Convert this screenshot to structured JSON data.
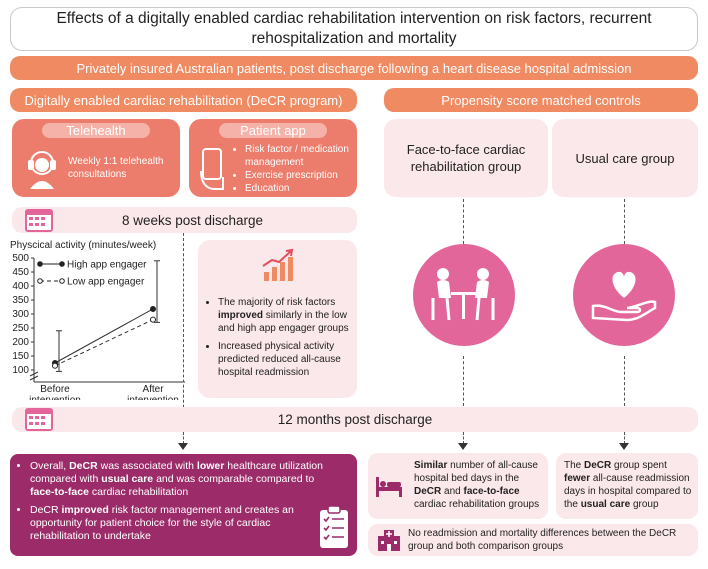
{
  "title": "Effects of a digitally enabled cardiac rehabilitation intervention on risk factors, recurrent rehospitalization and mortality",
  "population": "Privately insured Australian patients, post discharge following a heart disease hospital admission",
  "left_header": "Digitally enabled cardiac rehabilitation (DeCR program)",
  "right_header": "Propensity score matched controls",
  "telehealth": {
    "label": "Telehealth",
    "text": "Weekly 1:1 telehealth consultations"
  },
  "patient_app": {
    "label": "Patient app",
    "items": [
      "Risk factor / medication management",
      "Exercise prescription",
      "Education"
    ]
  },
  "controls": {
    "f2f": "Face-to-face cardiac rehabilitation group",
    "usual": "Usual care group"
  },
  "timepoint_8w": "8 weeks post discharge",
  "timepoint_12m": "12 months post discharge",
  "chart_data": {
    "type": "line",
    "title": "Physcical activity (minutes/week)",
    "categories": [
      "Before intervention",
      "After intervention"
    ],
    "ylim": [
      100,
      500
    ],
    "yticks": [
      100,
      150,
      200,
      250,
      300,
      350,
      400,
      450,
      500
    ],
    "series": [
      {
        "name": "High app engager",
        "values": [
          125,
          318
        ],
        "err_low": [
          95,
          270
        ],
        "err_high": [
          240,
          490
        ],
        "style": "solid"
      },
      {
        "name": "Low app engager",
        "values": [
          115,
          280
        ],
        "style": "dashed"
      }
    ]
  },
  "findings_8w": {
    "b1_pre": "The majority of risk factors ",
    "b1_bold": "improved",
    "b1_post": " similarly in the low and high app engager groups",
    "b2": "Increased physical activity predicted reduced all-cause hospital readmission"
  },
  "conclusion": {
    "c1": [
      "Overall, ",
      "DeCR",
      " was associated with ",
      "lower",
      " healthcare utilization compared with ",
      "usual care",
      " and was comparable compared to ",
      "face-to-face",
      " cardiac rehabilitation"
    ],
    "c2": [
      "DeCR ",
      "improved",
      " risk factor management and creates an opportunity for patient choice for the style of cardiac rehabilitation to undertake"
    ]
  },
  "f2f_result": [
    "Similar",
    " number of all-cause hospital bed days in the ",
    "DeCR",
    " and ",
    "face-to-face",
    " cardiac rehabilitation groups"
  ],
  "usual_result": [
    "The ",
    "DeCR",
    " group spent ",
    "fewer",
    " all-cause readmission days in hospital compared to the ",
    "usual care",
    " group"
  ],
  "mortality_result": "No readmission and mortality differences between the DeCR group and both comparison groups",
  "colors": {
    "orange": "#f08a62",
    "card": "#ec7c6b",
    "pink": "#e2669a",
    "purple": "#9b2c69",
    "soft": "#fbe8ea"
  }
}
